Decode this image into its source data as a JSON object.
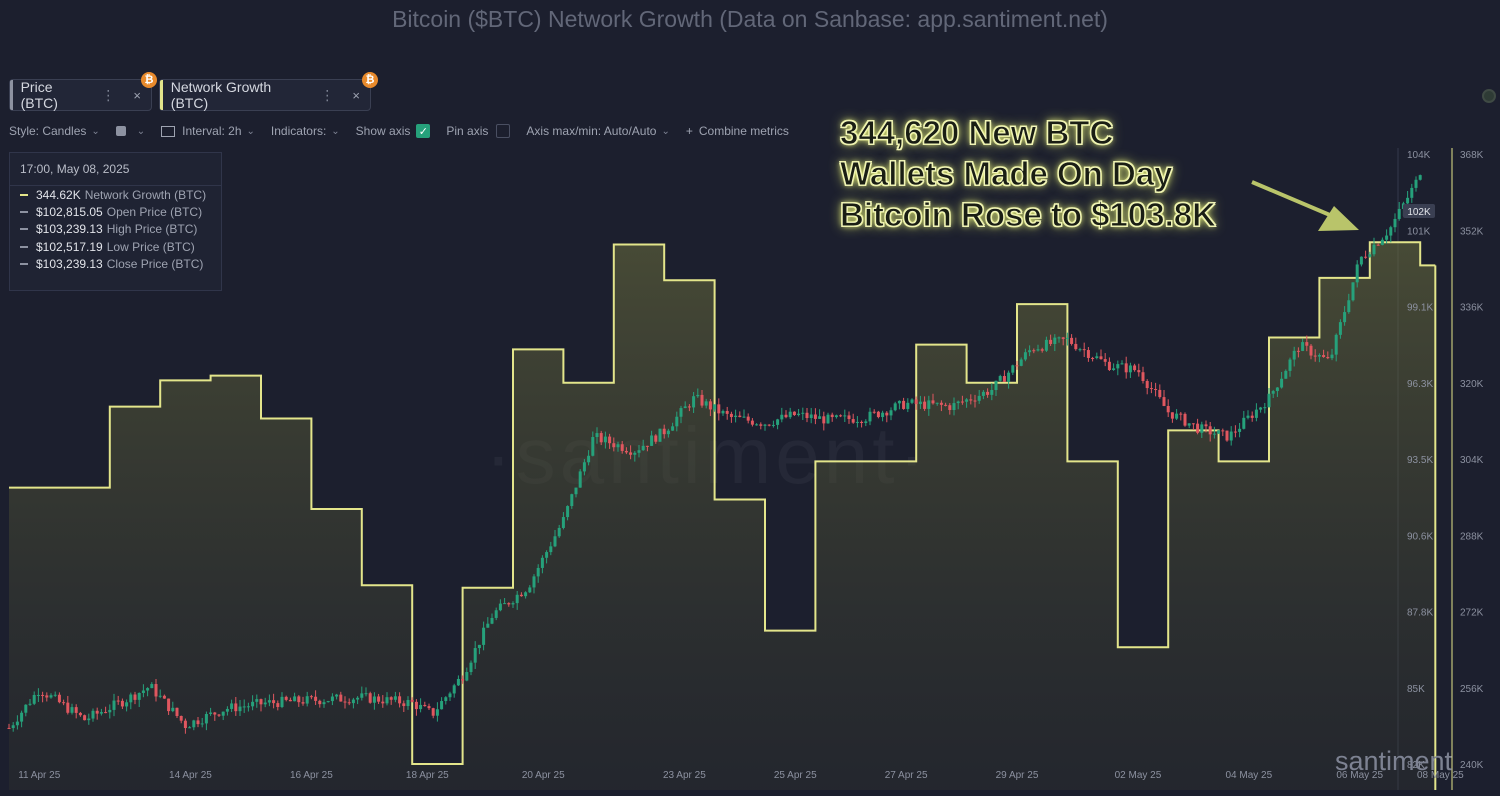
{
  "page_title": "Bitcoin ($BTC) Network Growth (Data on Sanbase: app.santiment.net)",
  "tabs": [
    {
      "label": "Price (BTC)",
      "dots": "⋮",
      "close": "×",
      "badge": "₿",
      "color": "#8d92a1"
    },
    {
      "label": "Network Growth (BTC)",
      "dots": "⋮",
      "close": "×",
      "badge": "₿",
      "color": "#e3e58b"
    }
  ],
  "toolbar": {
    "style_label": "Style: Candles",
    "interval_label": "Interval: 2h",
    "indicators_label": "Indicators:",
    "show_axis_label": "Show axis",
    "pin_axis_label": "Pin axis",
    "axis_label": "Axis max/min: Auto/Auto",
    "combine_label": "Combine metrics",
    "chevron": "⌄",
    "check": "✓",
    "plus": "+"
  },
  "legend": {
    "date": "17:00, May 08, 2025",
    "rows": [
      {
        "value": "344.62K",
        "label": "Network Growth (BTC)",
        "color": "#e3e58b"
      },
      {
        "value": "$102,815.05",
        "label": "Open Price (BTC)",
        "color": "#8d92a1"
      },
      {
        "value": "$103,239.13",
        "label": "High Price (BTC)",
        "color": "#8d92a1"
      },
      {
        "value": "$102,517.19",
        "label": "Low Price (BTC)",
        "color": "#8d92a1"
      },
      {
        "value": "$103,239.13",
        "label": "Close Price (BTC)",
        "color": "#8d92a1"
      }
    ]
  },
  "annotation": {
    "lines": [
      "344,620 New BTC",
      "Wallets Made On Day",
      "Bitcoin Rose to $103.8K"
    ]
  },
  "watermark": "·santiment·",
  "brand": "santiment",
  "colors": {
    "background": "#1c1f2e",
    "network_growth": "#e3e58b",
    "candle_up": "#26a17b",
    "candle_down": "#e0575f",
    "arrow": "#b9c46a"
  },
  "chart_data": {
    "type": "line",
    "title": "Bitcoin ($BTC) Network Growth (Data on Sanbase: app.santiment.net)",
    "x_tick_labels": [
      "11 Apr 25",
      "14 Apr 25",
      "16 Apr 25",
      "18 Apr 25",
      "20 Apr 25",
      "23 Apr 25",
      "25 Apr 25",
      "27 Apr 25",
      "29 Apr 25",
      "02 May 25",
      "04 May 25",
      "06 May 25",
      "08 May 25"
    ],
    "price_axis": {
      "ticks": [
        "104K",
        "101K",
        "99.1K",
        "96.3K",
        "93.5K",
        "90.6K",
        "87.8K",
        "85K",
        "82K"
      ],
      "min": 82000,
      "max": 104000,
      "current_label": "102K"
    },
    "network_growth_axis": {
      "ticks": [
        "368K",
        "352K",
        "336K",
        "320K",
        "304K",
        "288K",
        "272K",
        "256K",
        "240K"
      ],
      "min": 240000,
      "max": 368000
    },
    "series": [
      {
        "name": "Network Growth (BTC)",
        "type": "step-area",
        "days": [
          0,
          2,
          3,
          4,
          5,
          6,
          7,
          8,
          9,
          10,
          11,
          12,
          13,
          14,
          15,
          16,
          17,
          18,
          19,
          20,
          21,
          22,
          23,
          24,
          25,
          26,
          27,
          28
        ],
        "values": [
          298000,
          315000,
          320500,
          321500,
          312500,
          293500,
          277500,
          240000,
          277000,
          327000,
          320000,
          349000,
          341500,
          295500,
          268000,
          303500,
          303500,
          328000,
          320000,
          336500,
          303500,
          264500,
          310000,
          303500,
          329500,
          342000,
          349500,
          344620
        ]
      },
      {
        "name": "Price (BTC)",
        "type": "candles",
        "anchor_days": [
          0,
          0.6,
          1.5,
          2.3,
          2.8,
          3.5,
          4.3,
          5.1,
          6,
          7,
          8,
          8.4,
          9,
          9.6,
          10.3,
          11,
          11.6,
          12.4,
          13,
          13.6,
          14.3,
          15,
          15.6,
          16.3,
          17,
          17.8,
          18.7,
          19.5,
          20.3,
          21,
          21.8,
          22.4,
          23,
          23.6,
          24.2,
          25,
          25.6,
          26.2,
          26.8,
          27.4,
          28
        ],
        "anchor_closes": [
          83300,
          84700,
          83600,
          84300,
          84800,
          83400,
          84000,
          84200,
          84300,
          84400,
          84200,
          83800,
          85200,
          87400,
          88400,
          90800,
          93800,
          93300,
          94000,
          95200,
          94500,
          94300,
          94600,
          94400,
          94500,
          95000,
          94900,
          95500,
          97000,
          97300,
          96400,
          96200,
          94700,
          94100,
          93800,
          95200,
          97100,
          96500,
          100200,
          101300,
          103239
        ]
      }
    ]
  }
}
